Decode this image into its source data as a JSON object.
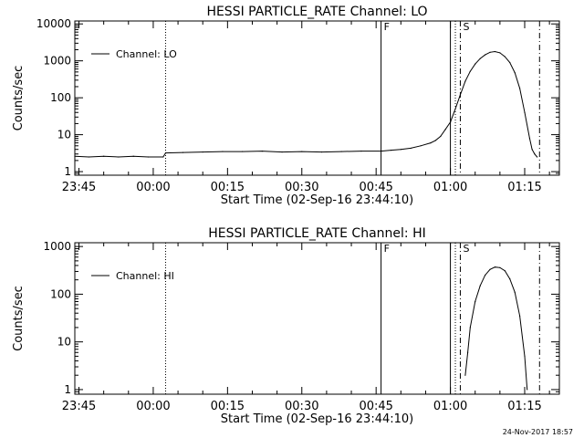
{
  "chart_data": [
    {
      "type": "line",
      "title": "HESSI PARTICLE_RATE Channel: LO",
      "xlabel": "Start Time (02-Sep-16 23:44:10)",
      "ylabel": "Counts/sec",
      "y_scale": "log",
      "ylim": [
        0.8,
        12000
      ],
      "xlim": [
        "23:44:10",
        "01:22:00"
      ],
      "x_ticks": [
        "23:45",
        "00:00",
        "00:15",
        "00:30",
        "00:45",
        "01:00",
        "01:15"
      ],
      "y_ticks": [
        "1",
        "10",
        "100",
        "1000",
        "10000"
      ],
      "legend": {
        "entries": [
          "Channel: LO"
        ],
        "placement": "top-left"
      },
      "markers": [
        {
          "time": "00:02:30",
          "style": "dotted",
          "label": ""
        },
        {
          "time": "00:46:00",
          "style": "solid",
          "label": "F"
        },
        {
          "time": "01:00:00",
          "style": "solid",
          "label": ""
        },
        {
          "time": "01:01:00",
          "style": "dotted",
          "label": ""
        },
        {
          "time": "01:02:00",
          "style": "dashdot",
          "label": "S"
        },
        {
          "time": "01:18:00",
          "style": "dashdot",
          "label": ""
        }
      ],
      "series": [
        {
          "name": "Channel: LO",
          "x": [
            "23:44:10",
            "23:47:00",
            "23:50:00",
            "23:53:00",
            "23:56:00",
            "23:59:00",
            "00:02:00",
            "00:02:30",
            "00:06:00",
            "00:10:00",
            "00:14:00",
            "00:18:00",
            "00:22:00",
            "00:26:00",
            "00:30:00",
            "00:34:00",
            "00:38:00",
            "00:42:00",
            "00:46:00",
            "00:48:00",
            "00:50:00",
            "00:52:00",
            "00:54:00",
            "00:56:00",
            "00:57:00",
            "00:58:00",
            "00:59:00",
            "01:00:00",
            "01:01:00",
            "01:02:00",
            "01:03:00",
            "01:04:00",
            "01:05:00",
            "01:06:00",
            "01:07:00",
            "01:08:00",
            "01:09:00",
            "01:10:00",
            "01:11:00",
            "01:12:00",
            "01:13:00",
            "01:14:00",
            "01:15:00",
            "01:16:00",
            "01:16:30",
            "01:17:00",
            "01:17:30"
          ],
          "y": [
            2.6,
            2.5,
            2.6,
            2.5,
            2.6,
            2.5,
            2.5,
            3.2,
            3.3,
            3.4,
            3.5,
            3.5,
            3.6,
            3.4,
            3.5,
            3.4,
            3.5,
            3.6,
            3.6,
            3.8,
            4,
            4.3,
            5,
            6,
            7,
            9,
            14,
            22,
            50,
            120,
            280,
            520,
            820,
            1150,
            1450,
            1700,
            1780,
            1650,
            1300,
            900,
            480,
            180,
            40,
            8,
            4,
            3,
            2.5
          ]
        }
      ]
    },
    {
      "type": "line",
      "title": "HESSI PARTICLE_RATE Channel: HI",
      "xlabel": "Start Time (02-Sep-16 23:44:10)",
      "ylabel": "Counts/sec",
      "y_scale": "log",
      "ylim": [
        0.8,
        1200
      ],
      "xlim": [
        "23:44:10",
        "01:22:00"
      ],
      "x_ticks": [
        "23:45",
        "00:00",
        "00:15",
        "00:30",
        "00:45",
        "01:00",
        "01:15"
      ],
      "y_ticks": [
        "1",
        "10",
        "100",
        "1000"
      ],
      "legend": {
        "entries": [
          "Channel: HI"
        ],
        "placement": "top-left"
      },
      "markers": [
        {
          "time": "00:02:30",
          "style": "dotted",
          "label": ""
        },
        {
          "time": "00:46:00",
          "style": "solid",
          "label": "F"
        },
        {
          "time": "01:00:00",
          "style": "solid",
          "label": ""
        },
        {
          "time": "01:01:00",
          "style": "dotted",
          "label": ""
        },
        {
          "time": "01:02:00",
          "style": "dashdot",
          "label": "S"
        },
        {
          "time": "01:18:00",
          "style": "dashdot",
          "label": ""
        }
      ],
      "series": [
        {
          "name": "Channel: HI",
          "x": [
            "01:03:00",
            "01:03:30",
            "01:04:00",
            "01:05:00",
            "01:06:00",
            "01:07:00",
            "01:08:00",
            "01:09:00",
            "01:10:00",
            "01:11:00",
            "01:12:00",
            "01:13:00",
            "01:14:00",
            "01:15:00",
            "01:15:30"
          ],
          "y": [
            2,
            6,
            20,
            70,
            150,
            250,
            330,
            370,
            360,
            310,
            210,
            110,
            35,
            5,
            1
          ]
        }
      ]
    }
  ],
  "footer": {
    "timestamp": "24-Nov-2017 18:57"
  }
}
